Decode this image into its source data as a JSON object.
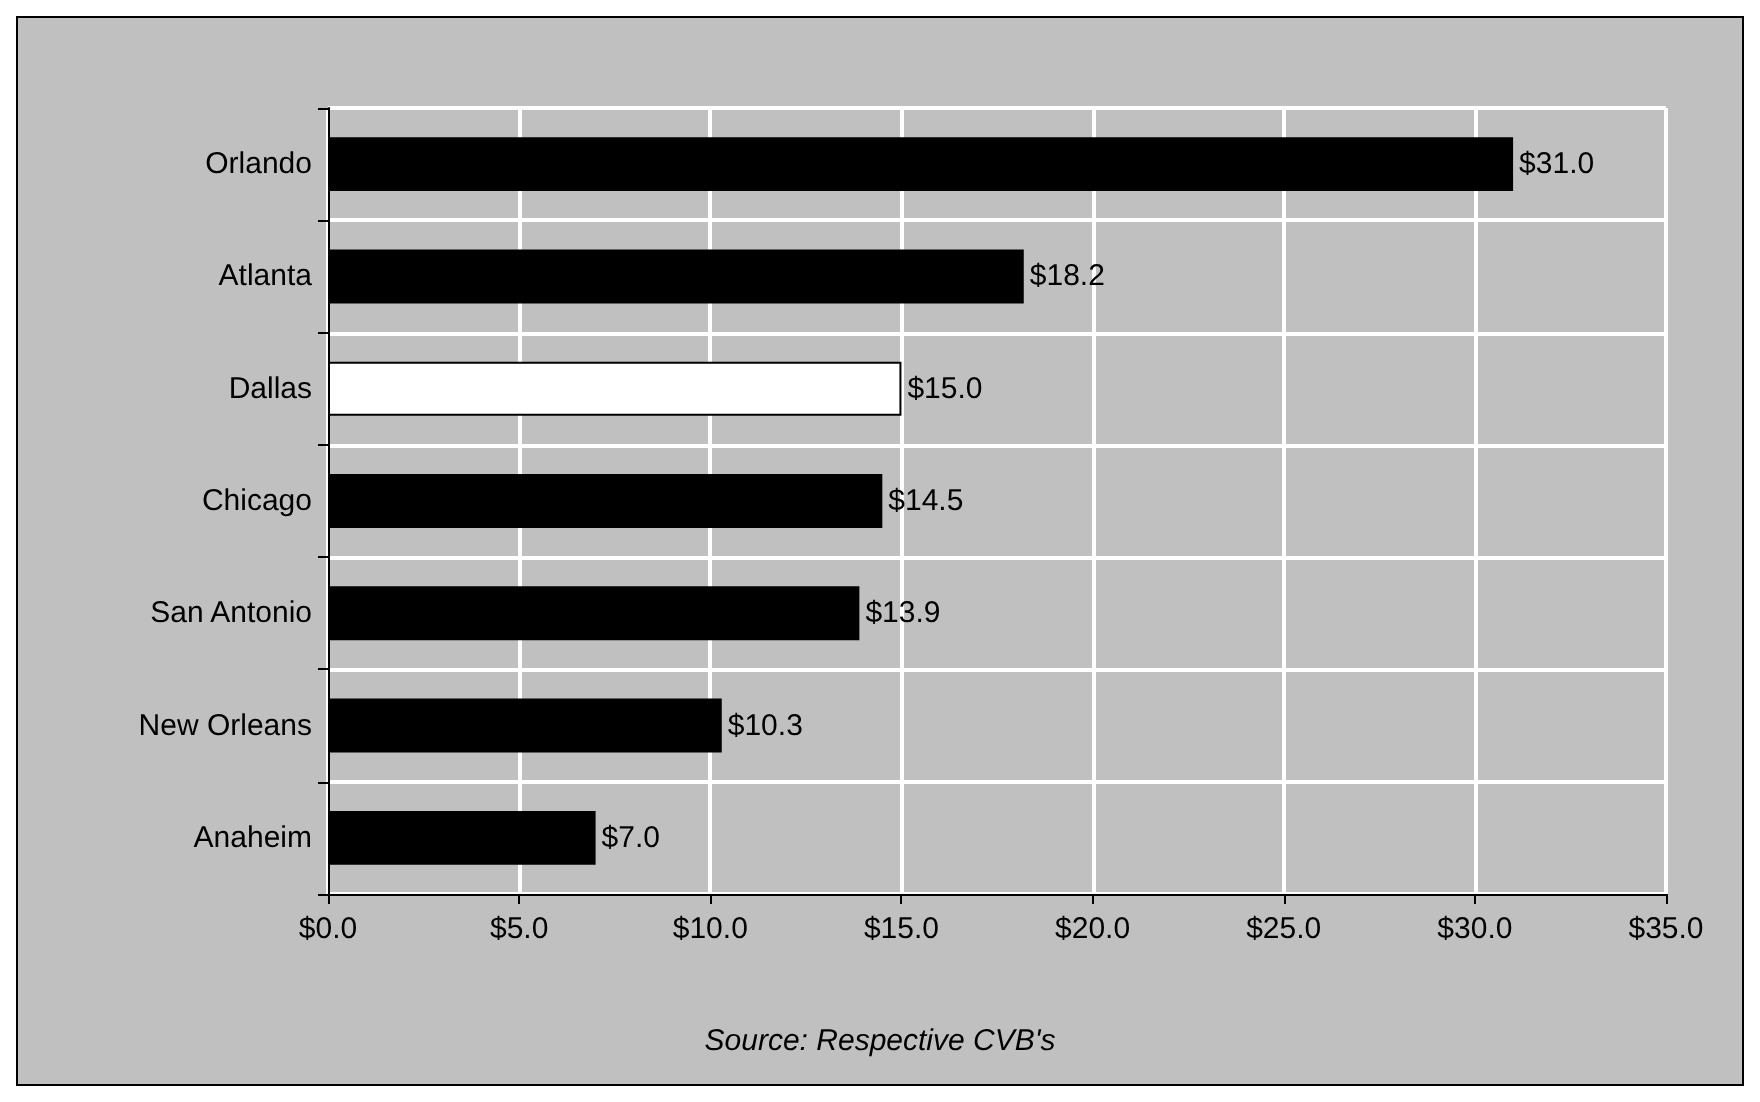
{
  "chart_data": {
    "type": "bar",
    "orientation": "horizontal",
    "categories": [
      "Orlando",
      "Atlanta",
      "Dallas",
      "Chicago",
      "San Antonio",
      "New Orleans",
      "Anaheim"
    ],
    "values": [
      31.0,
      18.2,
      15.0,
      14.5,
      13.9,
      10.3,
      7.0
    ],
    "colors": [
      "#000000",
      "#000000",
      "#ffffff",
      "#000000",
      "#000000",
      "#000000",
      "#000000"
    ],
    "value_labels": [
      "$31.0",
      "$18.2",
      "$15.0",
      "$14.5",
      "$13.9",
      "$10.3",
      "$7.0"
    ],
    "xlim": [
      0,
      35
    ],
    "xticks": [
      {
        "value": 0,
        "label": "$0.0"
      },
      {
        "value": 5,
        "label": "$5.0"
      },
      {
        "value": 10,
        "label": "$10.0"
      },
      {
        "value": 15,
        "label": "$15.0"
      },
      {
        "value": 20,
        "label": "$20.0"
      },
      {
        "value": 25,
        "label": "$25.0"
      },
      {
        "value": 30,
        "label": "$30.0"
      },
      {
        "value": 35,
        "label": "$35.0"
      }
    ],
    "grid": true,
    "annotations": [
      "Source: Respective CVB's"
    ]
  }
}
